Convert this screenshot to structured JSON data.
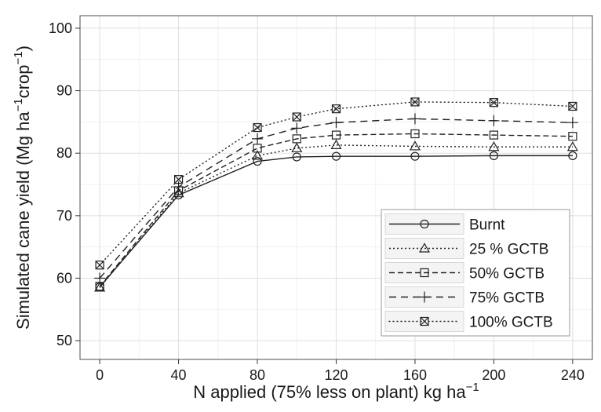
{
  "chart_data": {
    "type": "line",
    "title": "",
    "xlabel": "N applied (75% less on plant) kg ha",
    "xlabel_sup": "−1",
    "ylabel_parts": [
      "Simulated cane yield (Mg ha",
      "−1",
      "crop",
      "−1",
      ")"
    ],
    "x": [
      0,
      40,
      80,
      100,
      120,
      160,
      200,
      240
    ],
    "x_ticks": [
      0,
      40,
      80,
      120,
      160,
      200,
      240
    ],
    "y_ticks": [
      50,
      60,
      70,
      80,
      90,
      100
    ],
    "xlim": [
      -10,
      250
    ],
    "ylim": [
      47,
      102
    ],
    "grid": true,
    "legend_position": "bottom-right",
    "series": [
      {
        "name": "Burnt",
        "marker": "circle",
        "dash": "",
        "values": [
          58.6,
          73.3,
          78.7,
          79.4,
          79.5,
          79.5,
          79.6,
          79.6
        ]
      },
      {
        "name": "25 % GCTB",
        "marker": "triangle",
        "dash": "2,3",
        "values": [
          58.5,
          73.6,
          79.6,
          80.8,
          81.3,
          81.1,
          81.0,
          81.0
        ]
      },
      {
        "name": "50% GCTB",
        "marker": "square",
        "dash": "7,4",
        "values": [
          58.7,
          74.0,
          80.8,
          82.3,
          82.9,
          83.1,
          82.9,
          82.7
        ]
      },
      {
        "name": "75% GCTB",
        "marker": "plus",
        "dash": "9,6",
        "values": [
          60.0,
          74.6,
          82.3,
          84.0,
          84.9,
          85.5,
          85.2,
          84.9
        ]
      },
      {
        "name": "100% GCTB",
        "marker": "boxx",
        "dash": "1,4",
        "values": [
          62.1,
          75.8,
          84.1,
          85.8,
          87.1,
          88.2,
          88.1,
          87.5
        ]
      }
    ]
  }
}
